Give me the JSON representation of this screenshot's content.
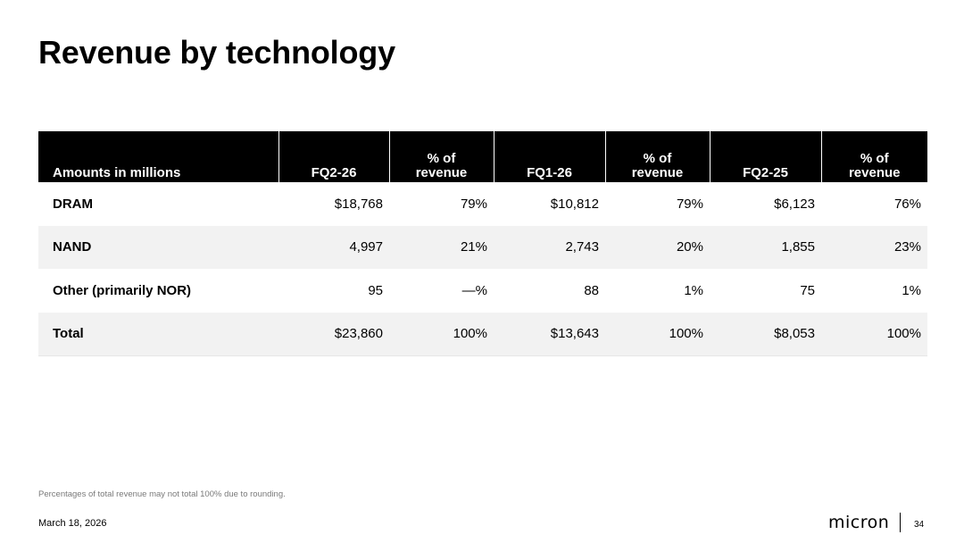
{
  "slide": {
    "title": "Revenue by technology",
    "footnote": "Percentages of total revenue may not total 100% due to rounding.",
    "date": "March 18, 2026",
    "logo_text": "micron",
    "page_number": "34"
  },
  "table": {
    "headers": [
      "Amounts in millions",
      "FQ2-26",
      "% of revenue",
      "FQ1-26",
      "% of revenue",
      "FQ2-25",
      "% of revenue"
    ],
    "rows": [
      [
        "DRAM",
        "$18,768",
        "79%",
        "$10,812",
        "79%",
        "$6,123",
        "76%"
      ],
      [
        "NAND",
        "4,997",
        "21%",
        "2,743",
        "20%",
        "1,855",
        "23%"
      ],
      [
        "Other (primarily NOR)",
        "95",
        "—%",
        "88",
        "1%",
        "75",
        "1%"
      ],
      [
        "Total",
        "$23,860",
        "100%",
        "$13,643",
        "100%",
        "$8,053",
        "100%"
      ]
    ]
  }
}
